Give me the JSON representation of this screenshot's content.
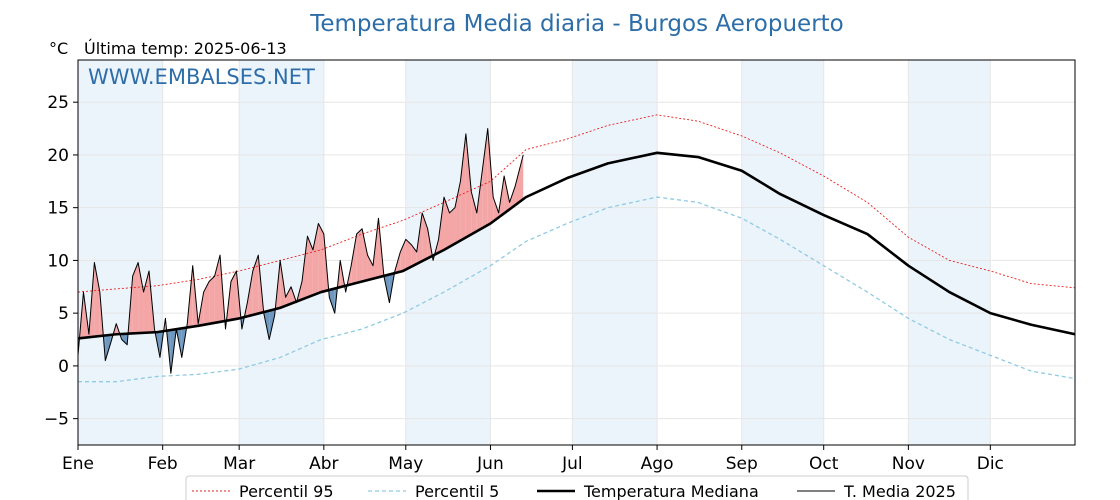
{
  "chart_data": {
    "type": "line",
    "title": "Temperatura Media diaria - Burgos Aeropuerto",
    "unit_label": "°C",
    "subtitle": "Última temp: 2025-06-13",
    "watermark": "WWW.EMBALSES.NET",
    "ylim": [
      -7.5,
      29
    ],
    "yticks": [
      -5,
      0,
      5,
      10,
      15,
      20,
      25
    ],
    "ytick_labels": [
      "−5",
      "0",
      "5",
      "10",
      "15",
      "20",
      "25"
    ],
    "xlim": [
      1,
      366
    ],
    "month_starts": [
      1,
      32,
      60,
      91,
      121,
      152,
      182,
      213,
      244,
      274,
      305,
      335
    ],
    "month_labels": [
      "Ene",
      "Feb",
      "Mar",
      "Abr",
      "May",
      "Jun",
      "Jul",
      "Ago",
      "Sep",
      "Oct",
      "Nov",
      "Dic"
    ],
    "grid": true,
    "legend_position": "bottom",
    "colors": {
      "p95": "#e8211f",
      "p5": "#8fcbe3",
      "median": "#000000",
      "current": "#000000",
      "above_fill": "#f4a6a6",
      "below_fill": "#6e98bf",
      "band": "#ddebf7",
      "title": "#2e6ea8"
    },
    "series": [
      {
        "name": "Percentil 95",
        "x": [
          1,
          15,
          30,
          45,
          60,
          75,
          90,
          105,
          120,
          135,
          152,
          165,
          180,
          195,
          213,
          228,
          244,
          258,
          274,
          290,
          305,
          320,
          335,
          350,
          366
        ],
        "values": [
          7.0,
          7.3,
          7.6,
          8.2,
          9.0,
          10.0,
          11.0,
          12.5,
          13.8,
          15.5,
          17.5,
          20.5,
          21.5,
          22.8,
          23.8,
          23.2,
          21.8,
          20.2,
          18.0,
          15.5,
          12.2,
          10.0,
          9.0,
          7.8,
          7.4
        ]
      },
      {
        "name": "Percentil 5",
        "x": [
          1,
          15,
          30,
          45,
          60,
          75,
          90,
          105,
          120,
          135,
          152,
          165,
          180,
          195,
          213,
          228,
          244,
          258,
          274,
          290,
          305,
          320,
          335,
          350,
          366
        ],
        "values": [
          -1.5,
          -1.5,
          -1.0,
          -0.8,
          -0.3,
          0.8,
          2.5,
          3.5,
          5.0,
          7.0,
          9.5,
          11.8,
          13.5,
          15.0,
          16.0,
          15.5,
          14.0,
          12.0,
          9.5,
          7.0,
          4.5,
          2.5,
          1.0,
          -0.5,
          -1.2
        ]
      },
      {
        "name": "Temperatura Mediana",
        "x": [
          1,
          15,
          30,
          45,
          60,
          75,
          90,
          105,
          120,
          135,
          152,
          165,
          180,
          195,
          213,
          228,
          244,
          258,
          274,
          290,
          305,
          320,
          335,
          350,
          366
        ],
        "values": [
          2.6,
          3.0,
          3.2,
          3.8,
          4.5,
          5.5,
          7.0,
          8.0,
          9.0,
          11.0,
          13.5,
          16.0,
          17.8,
          19.2,
          20.2,
          19.8,
          18.5,
          16.3,
          14.3,
          12.5,
          9.5,
          7.0,
          5.0,
          3.9,
          3.0
        ]
      },
      {
        "name": "T. Media 2025",
        "x": [
          1,
          3,
          5,
          7,
          9,
          11,
          13,
          15,
          17,
          19,
          21,
          23,
          25,
          27,
          29,
          31,
          33,
          35,
          37,
          39,
          41,
          43,
          45,
          47,
          49,
          51,
          53,
          55,
          57,
          59,
          61,
          63,
          65,
          67,
          69,
          71,
          73,
          75,
          77,
          79,
          81,
          83,
          85,
          87,
          89,
          91,
          93,
          95,
          97,
          99,
          101,
          103,
          105,
          107,
          109,
          111,
          113,
          115,
          117,
          119,
          121,
          123,
          125,
          127,
          129,
          131,
          133,
          135,
          137,
          139,
          141,
          143,
          145,
          147,
          149,
          151,
          153,
          155,
          157,
          159,
          161,
          163,
          164
        ],
        "values": [
          1.0,
          7.0,
          3.0,
          9.8,
          7.0,
          0.5,
          2.2,
          4.0,
          2.5,
          2.0,
          8.5,
          9.8,
          7.0,
          9.0,
          3.5,
          0.8,
          4.5,
          -0.7,
          3.5,
          0.8,
          4.0,
          9.5,
          4.0,
          7.0,
          8.0,
          8.5,
          10.5,
          3.5,
          8.0,
          9.0,
          3.5,
          6.0,
          9.0,
          10.5,
          5.0,
          2.5,
          4.8,
          10.0,
          6.5,
          7.5,
          6.0,
          8.0,
          12.3,
          11.0,
          13.5,
          12.5,
          6.5,
          5.0,
          10.0,
          7.0,
          9.5,
          12.5,
          13.0,
          10.5,
          9.5,
          14.0,
          8.5,
          6.0,
          9.0,
          10.8,
          12.0,
          11.5,
          10.8,
          14.5,
          13.0,
          10.0,
          12.0,
          16.0,
          14.5,
          15.0,
          17.5,
          22.0,
          16.5,
          14.5,
          18.5,
          22.5,
          16.0,
          14.5,
          18.0,
          15.5,
          17.0,
          19.0,
          20.0
        ]
      }
    ]
  }
}
